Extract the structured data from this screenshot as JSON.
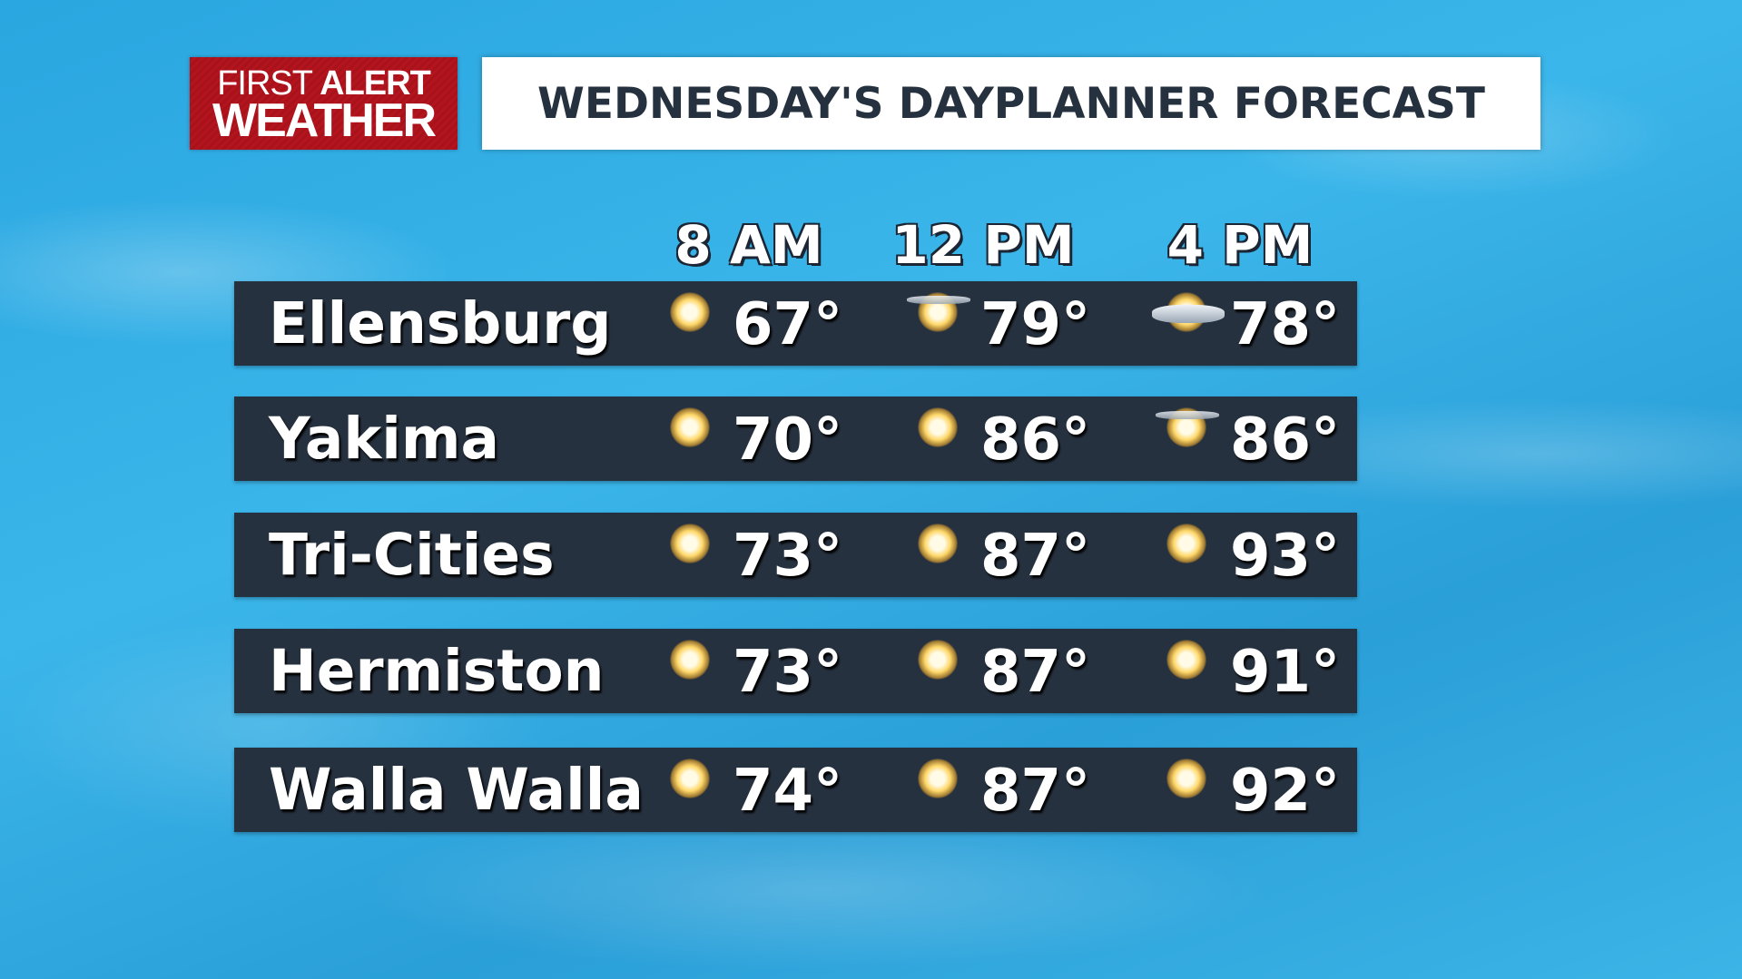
{
  "logo": {
    "line1_thin": "FIRST",
    "line1_bold": "ALERT",
    "line2": "WEATHER",
    "color": "#b3141d"
  },
  "title": "WEDNESDAY'S DAYPLANNER FORECAST",
  "columns": [
    "8 AM",
    "12 PM",
    "4 PM"
  ],
  "rows": [
    {
      "city": "Ellensburg",
      "cells": [
        {
          "icon": "sunny-icon",
          "temp": "67°"
        },
        {
          "icon": "mostly-sunny-icon",
          "temp": "79°"
        },
        {
          "icon": "partly-cloudy-icon",
          "temp": "78°"
        }
      ]
    },
    {
      "city": "Yakima",
      "cells": [
        {
          "icon": "sunny-icon",
          "temp": "70°"
        },
        {
          "icon": "sunny-icon",
          "temp": "86°"
        },
        {
          "icon": "mostly-sunny-icon",
          "temp": "86°"
        }
      ]
    },
    {
      "city": "Tri-Cities",
      "cells": [
        {
          "icon": "sunny-icon",
          "temp": "73°"
        },
        {
          "icon": "sunny-icon",
          "temp": "87°"
        },
        {
          "icon": "sunny-icon",
          "temp": "93°"
        }
      ]
    },
    {
      "city": "Hermiston",
      "cells": [
        {
          "icon": "sunny-icon",
          "temp": "73°"
        },
        {
          "icon": "sunny-icon",
          "temp": "87°"
        },
        {
          "icon": "sunny-icon",
          "temp": "91°"
        }
      ]
    },
    {
      "city": "Walla Walla",
      "cells": [
        {
          "icon": "sunny-icon",
          "temp": "74°"
        },
        {
          "icon": "sunny-icon",
          "temp": "87°"
        },
        {
          "icon": "sunny-icon",
          "temp": "92°"
        }
      ]
    }
  ]
}
